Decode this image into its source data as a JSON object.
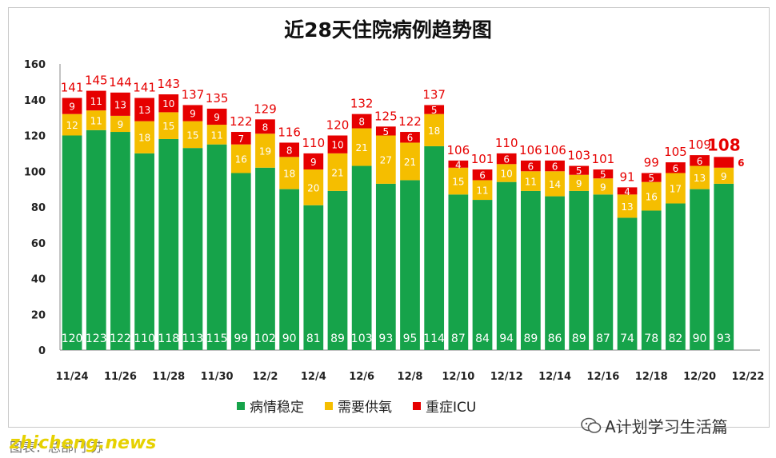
{
  "chart_data": {
    "type": "bar",
    "stacked": true,
    "title": "近28天住院病例趋势图",
    "categories": [
      "11/24",
      "11/25",
      "11/26",
      "11/27",
      "11/28",
      "11/29",
      "11/30",
      "12/1",
      "12/2",
      "12/3",
      "12/4",
      "12/5",
      "12/6",
      "12/7",
      "12/8",
      "12/9",
      "12/10",
      "12/11",
      "12/12",
      "12/13",
      "12/14",
      "12/15",
      "12/16",
      "12/17",
      "12/18",
      "12/19",
      "12/20",
      "12/21"
    ],
    "x_tick_labels": [
      "11/24",
      "11/26",
      "11/28",
      "11/30",
      "12/2",
      "12/4",
      "12/6",
      "12/8",
      "12/10",
      "12/12",
      "12/14",
      "12/16",
      "12/18",
      "12/20",
      "12/22"
    ],
    "series": [
      {
        "name": "病情稳定",
        "color": "#16a34a",
        "values": [
          120,
          123,
          122,
          110,
          118,
          113,
          115,
          99,
          102,
          90,
          81,
          89,
          103,
          93,
          95,
          114,
          87,
          84,
          94,
          89,
          86,
          89,
          87,
          74,
          78,
          82,
          90,
          93
        ]
      },
      {
        "name": "需要供氧",
        "color": "#f5be00",
        "values": [
          12,
          11,
          9,
          18,
          15,
          15,
          11,
          16,
          19,
          18,
          20,
          21,
          21,
          27,
          21,
          18,
          15,
          11,
          10,
          11,
          14,
          9,
          9,
          13,
          16,
          17,
          13,
          9
        ]
      },
      {
        "name": "重症ICU",
        "color": "#e60000",
        "values": [
          9,
          11,
          13,
          13,
          10,
          9,
          9,
          7,
          8,
          8,
          9,
          10,
          8,
          5,
          6,
          5,
          4,
          6,
          6,
          6,
          6,
          5,
          5,
          4,
          5,
          6,
          6,
          6
        ]
      }
    ],
    "totals": [
      141,
      145,
      144,
      141,
      143,
      137,
      135,
      122,
      129,
      116,
      110,
      120,
      132,
      125,
      122,
      137,
      106,
      101,
      110,
      106,
      106,
      103,
      101,
      91,
      99,
      105,
      109,
      108
    ],
    "ylim": [
      0,
      160
    ],
    "yticks": [
      0,
      20,
      40,
      60,
      80,
      100,
      120,
      140,
      160
    ],
    "grid": false,
    "legend_position": "bottom-center"
  },
  "watermark": "zhicheng.news",
  "credit": "图表：总部门·苏",
  "account": "A计划学习生活篇"
}
